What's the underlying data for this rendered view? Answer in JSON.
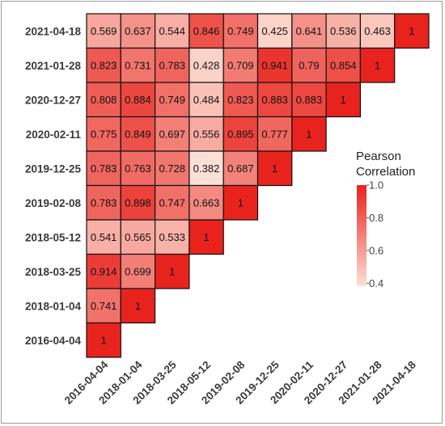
{
  "chart_data": {
    "type": "heatmap",
    "title": "",
    "xlabel": "",
    "ylabel": "",
    "dates": [
      "2016-04-04",
      "2018-01-04",
      "2018-03-25",
      "2018-05-12",
      "2019-02-08",
      "2019-12-25",
      "2020-02-11",
      "2020-12-27",
      "2021-01-28",
      "2021-04-18"
    ],
    "x_tick_labels": [
      "2016-04-04",
      "2018-01-04",
      "2018-03-25",
      "2018-05-12",
      "2019-02-08",
      "2019-12-25",
      "2020-02-11",
      "2020-12-27",
      "2021-01-28",
      "2021-04-18"
    ],
    "y_tick_labels_top_to_bottom": [
      "2021-04-18",
      "2021-01-28",
      "2020-12-27",
      "2020-02-11",
      "2019-12-25",
      "2019-02-08",
      "2018-05-12",
      "2018-03-25",
      "2018-01-04",
      "2016-04-04"
    ],
    "rows_top_to_bottom": [
      [
        0.569,
        0.637,
        0.544,
        0.846,
        0.749,
        0.425,
        0.641,
        0.536,
        0.463,
        1
      ],
      [
        0.823,
        0.731,
        0.783,
        0.428,
        0.709,
        0.941,
        0.79,
        0.854,
        1
      ],
      [
        0.808,
        0.884,
        0.749,
        0.484,
        0.823,
        0.883,
        0.883,
        1
      ],
      [
        0.775,
        0.849,
        0.697,
        0.556,
        0.895,
        0.777,
        1
      ],
      [
        0.783,
        0.763,
        0.728,
        0.382,
        0.687,
        1
      ],
      [
        0.783,
        0.898,
        0.747,
        0.663,
        1
      ],
      [
        0.541,
        0.565,
        0.533,
        1
      ],
      [
        0.914,
        0.699,
        1
      ],
      [
        0.741,
        1
      ],
      [
        1
      ]
    ],
    "legend": {
      "title_line1": "Pearson",
      "title_line2": "Correlation",
      "ticks": [
        "1.0",
        "0.8",
        "0.6",
        "0.4"
      ],
      "min": 0.382,
      "max": 1.0,
      "position": "right",
      "color_low": "#fde0d5",
      "color_high": "#e8231d"
    }
  }
}
